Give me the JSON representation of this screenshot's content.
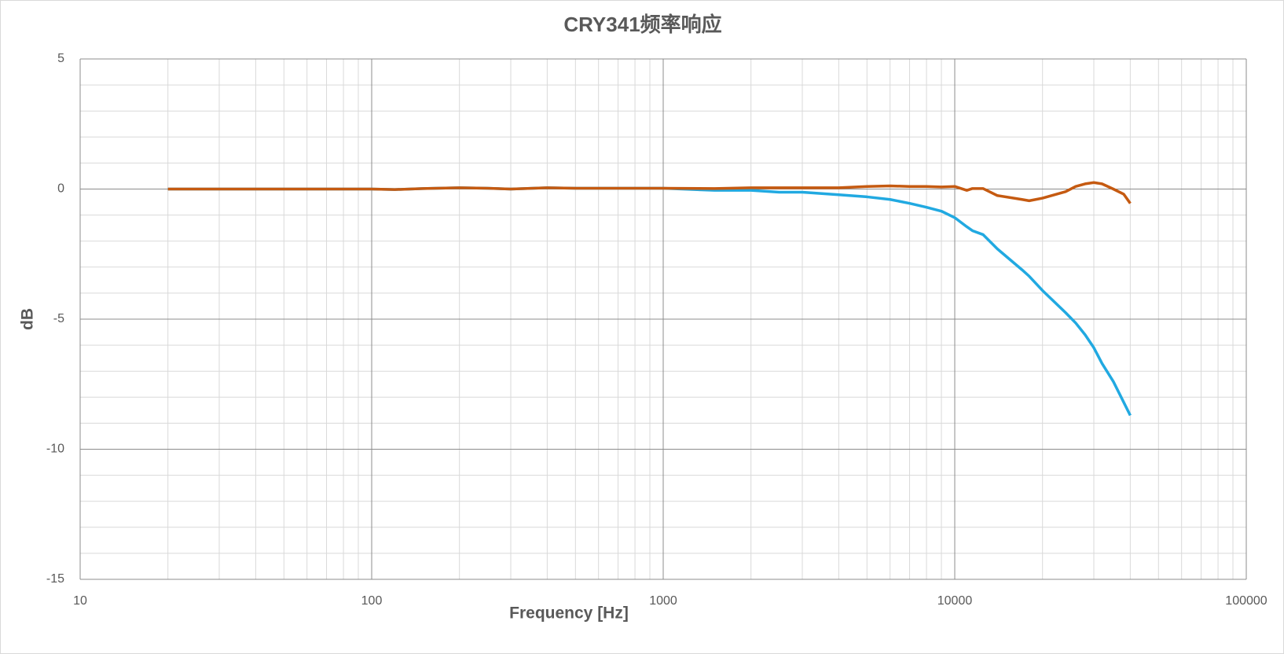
{
  "chart_data": {
    "type": "line",
    "title": "CRY341频率响应",
    "xlabel": "Frequency [Hz]",
    "ylabel": "dB",
    "xscale": "log",
    "xlim": [
      10,
      100000
    ],
    "xticks": [
      10,
      100,
      1000,
      10000,
      100000
    ],
    "ylim": [
      -15,
      5
    ],
    "yticks": [
      -15,
      -10,
      -5,
      0,
      5
    ],
    "grid": true,
    "x": [
      20,
      100,
      120,
      150,
      200,
      250,
      300,
      400,
      500,
      700,
      1000,
      1500,
      2000,
      2500,
      3000,
      4000,
      5000,
      6000,
      7000,
      8000,
      9000,
      10000,
      11000,
      11500,
      12500,
      14000,
      17000,
      18000,
      20000,
      24000,
      26000,
      28000,
      30000,
      32000,
      35000,
      38000,
      40000
    ],
    "series": [
      {
        "color": "#21a9e1",
        "values": [
          0,
          0,
          -0.02,
          0.02,
          0.05,
          0.03,
          0,
          0.05,
          0.03,
          0.03,
          0.03,
          -0.05,
          -0.05,
          -0.12,
          -0.12,
          -0.22,
          -0.3,
          -0.4,
          -0.55,
          -0.7,
          -0.85,
          -1.1,
          -1.45,
          -1.6,
          -1.75,
          -2.3,
          -3.1,
          -3.35,
          -3.9,
          -4.75,
          -5.15,
          -5.6,
          -6.1,
          -6.7,
          -7.4,
          -8.2,
          -8.7
        ]
      },
      {
        "color": "#c55a11",
        "values": [
          0,
          0,
          -0.02,
          0.02,
          0.05,
          0.03,
          0,
          0.05,
          0.03,
          0.03,
          0.03,
          0.02,
          0.05,
          0.05,
          0.05,
          0.05,
          0.1,
          0.12,
          0.1,
          0.1,
          0.08,
          0.1,
          -0.05,
          0.02,
          0.02,
          -0.25,
          -0.4,
          -0.45,
          -0.35,
          -0.1,
          0.1,
          0.2,
          0.25,
          0.2,
          0,
          -0.2,
          -0.55
        ]
      }
    ]
  }
}
